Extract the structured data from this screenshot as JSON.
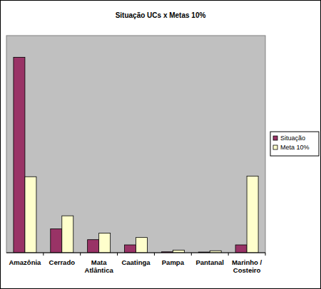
{
  "chart_data": {
    "type": "bar",
    "title": "Situação UCs x Metas 10%",
    "categories": [
      "Amazônia",
      "Cerrado",
      "Mata Atlântica",
      "Caatinga",
      "Pampa",
      "Pantanal",
      "Marinho / Costeiro"
    ],
    "series": [
      {
        "name": "Situação",
        "color": "#993366",
        "values": [
          90,
          11,
          6,
          3.6,
          0.4,
          0.3,
          3.6
        ]
      },
      {
        "name": "Meta 10%",
        "color": "#ffffcc",
        "values": [
          35,
          17,
          9,
          7,
          1.2,
          0.9,
          35.3
        ]
      }
    ],
    "ylim": [
      0,
      100
    ],
    "grid": false,
    "legend": "right",
    "tick_labels": "x"
  }
}
